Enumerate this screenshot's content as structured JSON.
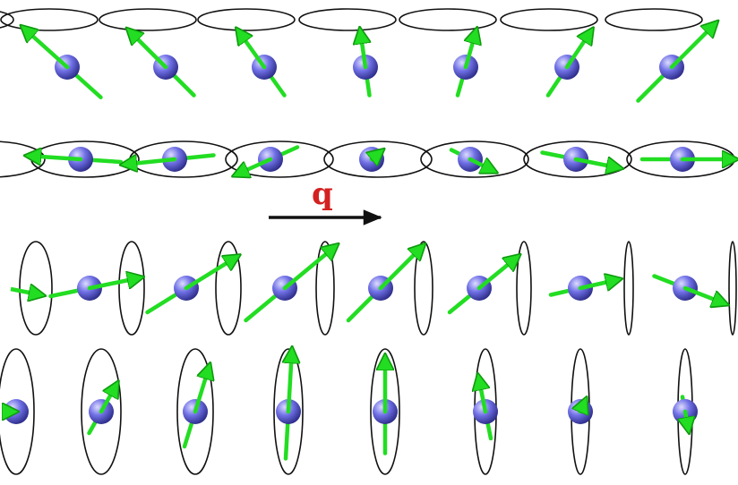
{
  "wavevector": {
    "label": "q",
    "label_color": "#d42020",
    "arrow_color": "#111111"
  },
  "colors": {
    "atom": "#6a6ae0",
    "atom_highlight": "#dcdcff",
    "atom_shadow": "#2a2a8a",
    "spin_arrow": "#22dd22",
    "spin_arrow_dark": "#0f9a0f",
    "precession_cone": "#111111"
  },
  "icons": {
    "atom": "sphere-icon",
    "spin": "arrow-icon",
    "cone": "ellipse-icon",
    "wavevector": "long-arrow-icon"
  },
  "chains": [
    {
      "name": "chain-horizontal-cones-top",
      "spins": 7
    },
    {
      "name": "chain-flat-ring-helix",
      "spins": 7
    },
    {
      "name": "chain-vertical-cones-tilted",
      "spins": 7
    },
    {
      "name": "chain-vertical-cones-upright",
      "spins": 8
    }
  ]
}
